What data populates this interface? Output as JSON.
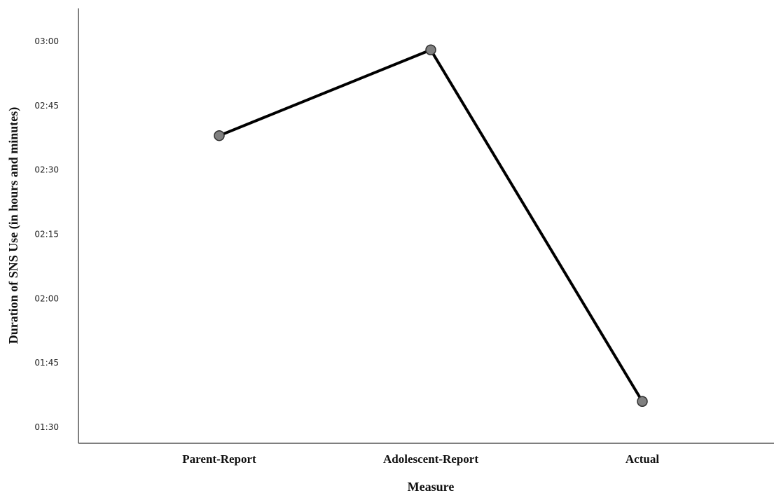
{
  "chart_data": {
    "type": "line",
    "categories": [
      "Parent-Report",
      "Adolescent-Report",
      "Actual"
    ],
    "series": [
      {
        "values": [
          "02:38",
          "02:58",
          "01:36"
        ],
        "values_minutes": [
          158,
          178,
          96
        ]
      }
    ],
    "xlabel": "Measure",
    "ylabel": "Duration of SNS Use (in hours and minutes)",
    "yticks": [
      "01:30",
      "01:45",
      "02:00",
      "02:15",
      "02:30",
      "02:45",
      "03:00"
    ],
    "ylim_minutes": [
      90,
      180
    ],
    "grid": false,
    "legend": "none",
    "colors": {
      "line": "#000000",
      "marker_fill": "#808080",
      "marker_stroke": "#303030",
      "axis": "#555555"
    }
  }
}
